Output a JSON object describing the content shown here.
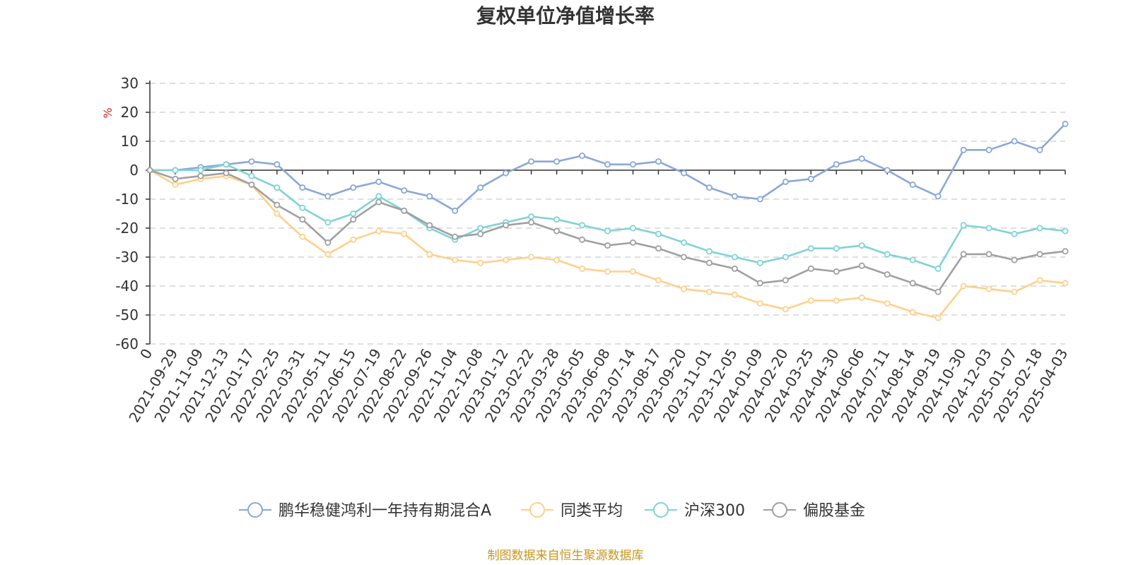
{
  "chart_data": {
    "type": "line",
    "title": "复权单位净值增长率",
    "ylabel": "%",
    "ylim": [
      -60,
      30
    ],
    "yticks": [
      "30",
      "20",
      "10",
      "0",
      "-10",
      "-20",
      "-30",
      "-40",
      "-50",
      "-60"
    ],
    "categories": [
      "0",
      "2021-09-29",
      "2021-11-09",
      "2021-12-13",
      "2022-01-17",
      "2022-02-25",
      "2022-03-31",
      "2022-05-11",
      "2022-06-15",
      "2022-07-19",
      "2022-08-22",
      "2022-09-26",
      "2022-11-04",
      "2022-12-08",
      "2023-01-12",
      "2023-02-22",
      "2023-03-28",
      "2023-05-05",
      "2023-06-08",
      "2023-07-14",
      "2023-08-17",
      "2023-09-20",
      "2023-11-01",
      "2023-12-05",
      "2024-01-09",
      "2024-02-20",
      "2024-03-25",
      "2024-04-30",
      "2024-06-06",
      "2024-07-11",
      "2024-08-14",
      "2024-09-19",
      "2024-10-30",
      "2024-12-03",
      "2025-01-07",
      "2025-02-18",
      "2025-04-03"
    ],
    "grid": true,
    "legend_position": "bottom",
    "series": [
      {
        "name": "鹏华稳健鸿利一年持有期混合A",
        "color": "#8aa8d8",
        "values": [
          0,
          0,
          1,
          2,
          3,
          2,
          -6,
          -9,
          -6,
          -4,
          -7,
          -9,
          -14,
          -6,
          -1,
          3,
          3,
          5,
          2,
          2,
          3,
          -1,
          -6,
          -9,
          -10,
          -4,
          -3,
          2,
          4,
          0,
          -5,
          -9,
          7,
          7,
          10,
          7,
          16
        ]
      },
      {
        "name": "同类平均",
        "color": "#ffd08a",
        "values": [
          0,
          -5,
          -3,
          -2,
          -5,
          -15,
          -23,
          -29,
          -24,
          -21,
          -22,
          -29,
          -31,
          -32,
          -31,
          -30,
          -31,
          -34,
          -35,
          -35,
          -38,
          -41,
          -42,
          -43,
          -46,
          -48,
          -45,
          -45,
          -44,
          -46,
          -49,
          -51,
          -40,
          -41,
          -42,
          -38,
          -39
        ]
      },
      {
        "name": "沪深300",
        "color": "#7fd3d6",
        "values": [
          0,
          0,
          0,
          2,
          -2,
          -6,
          -13,
          -18,
          -15,
          -9,
          -14,
          -20,
          -24,
          -20,
          -18,
          -16,
          -17,
          -19,
          -21,
          -20,
          -22,
          -25,
          -28,
          -30,
          -32,
          -30,
          -27,
          -27,
          -26,
          -29,
          -31,
          -34,
          -19,
          -20,
          -22,
          -20,
          -21
        ]
      },
      {
        "name": "偏股基金",
        "color": "#a0a0a0",
        "values": [
          0,
          -3,
          -2,
          -1,
          -5,
          -12,
          -17,
          -25,
          -17,
          -11,
          -14,
          -19,
          -23,
          -22,
          -19,
          -18,
          -21,
          -24,
          -26,
          -25,
          -27,
          -30,
          -32,
          -34,
          -39,
          -38,
          -34,
          -35,
          -33,
          -36,
          -39,
          -42,
          -29,
          -29,
          -31,
          -29,
          -28
        ]
      }
    ]
  },
  "footer": "制图数据来自恒生聚源数据库"
}
